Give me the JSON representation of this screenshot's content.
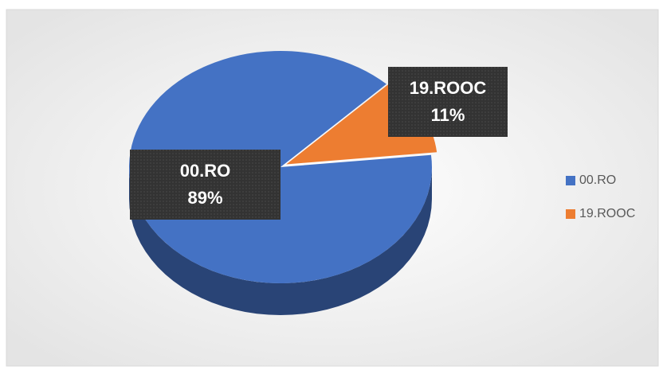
{
  "chart_data": {
    "type": "pie3d",
    "categories": [
      "00.RO",
      "19.ROOC"
    ],
    "values": [
      89,
      11
    ],
    "value_labels": [
      "89%",
      "11%"
    ],
    "colors": [
      "#4472c4",
      "#ed7d31"
    ],
    "legend": "right"
  }
}
